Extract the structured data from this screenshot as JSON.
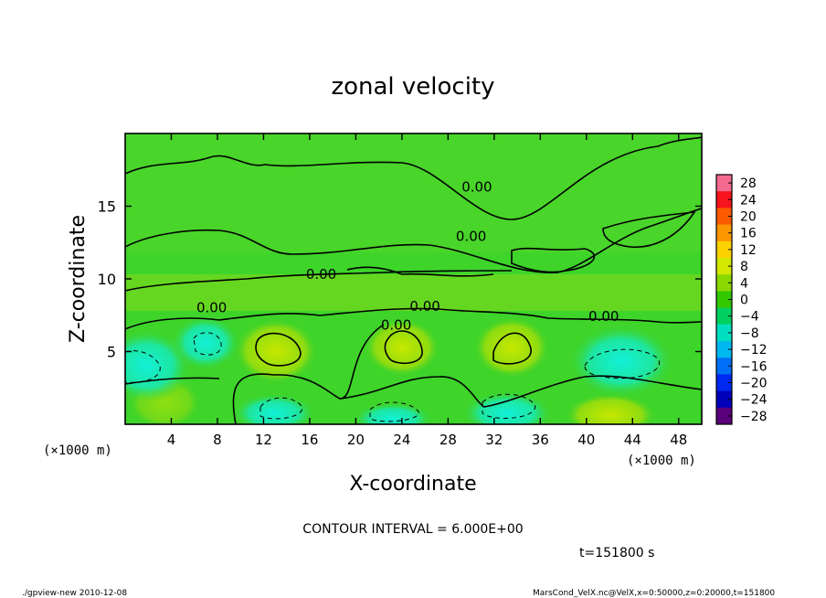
{
  "chart_data": {
    "type": "heatmap",
    "title": "zonal velocity",
    "xlabel": "X-coordinate",
    "ylabel": "Z-coordinate",
    "x_unit_left": "(×1000 m)",
    "x_unit_right": "(×1000 m)",
    "xlim": [
      0,
      50
    ],
    "ylim": [
      0,
      20
    ],
    "x_ticks": [
      4,
      8,
      12,
      16,
      20,
      24,
      28,
      32,
      36,
      40,
      44,
      48
    ],
    "y_ticks": [
      5,
      10,
      15
    ],
    "colorbar_levels": [
      28,
      24,
      20,
      16,
      12,
      8,
      4,
      0,
      -4,
      -8,
      -12,
      -16,
      -20,
      -24,
      -28
    ],
    "colorbar_colors": [
      "#f46a8e",
      "#f7141c",
      "#fc5a00",
      "#fc9600",
      "#fcd100",
      "#d2e800",
      "#8ad800",
      "#32c800",
      "#00d060",
      "#00e0c0",
      "#00b8f0",
      "#0070f8",
      "#0028f0",
      "#0000b8",
      "#5a007a"
    ],
    "contour_labels": [
      {
        "text": "0.00",
        "x": 30.5,
        "z": 16.0
      },
      {
        "text": "0.00",
        "x": 30.0,
        "z": 12.6
      },
      {
        "text": "0.00",
        "x": 17.0,
        "z": 10.0
      },
      {
        "text": "0.00",
        "x": 7.5,
        "z": 7.7
      },
      {
        "text": "0.00",
        "x": 26.0,
        "z": 7.8
      },
      {
        "text": "0.00",
        "x": 23.5,
        "z": 6.5
      },
      {
        "text": "0.00",
        "x": 41.5,
        "z": 7.1
      }
    ],
    "contour_interval": "CONTOUR INTERVAL = 6.000E+00",
    "time_label": "t=151800 s"
  },
  "footer": {
    "left": "./gpview-new   2010-12-08",
    "right": "MarsCond_VelX.nc@VelX,x=0:50000,z=0:20000,t=151800"
  },
  "colors": {
    "field_base": "#3ed42a",
    "positive_blob": "#b4e40e",
    "negative_blob": "#1ee6a0"
  }
}
